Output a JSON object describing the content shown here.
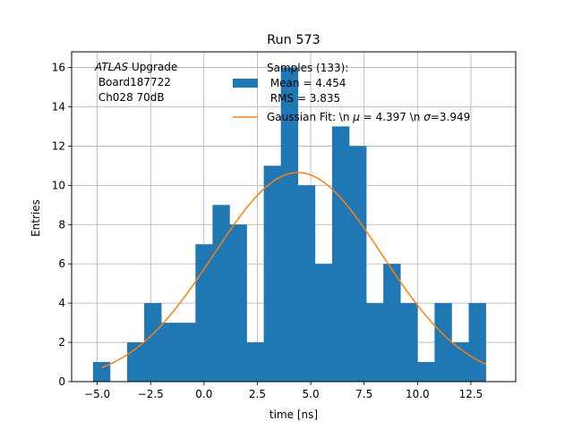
{
  "chart_data": {
    "type": "bar",
    "title": "Run 573",
    "xlabel": "time [ns]",
    "ylabel": "Entries",
    "xlim": [
      -6.2,
      14.6
    ],
    "ylim": [
      0,
      16.8
    ],
    "grid": true,
    "xticks": [
      -5.0,
      -2.5,
      0.0,
      2.5,
      5.0,
      7.5,
      10.0,
      12.5
    ],
    "xtick_labels": [
      "−5.0",
      "−2.5",
      "0.0",
      "2.5",
      "5.0",
      "7.5",
      "10.0",
      "12.5"
    ],
    "yticks": [
      0,
      2,
      4,
      6,
      8,
      10,
      12,
      14,
      16
    ],
    "ytick_labels": [
      "0",
      "2",
      "4",
      "6",
      "8",
      "10",
      "12",
      "14",
      "16"
    ],
    "annotation": {
      "line1_italic": "ATLAS",
      "line1_rest": " Upgrade",
      "line2": " Board187722",
      "line3": " Ch028 70dB"
    },
    "legend": {
      "placement": "top-right",
      "histogram_lines": [
        "Samples (133):",
        " Mean = 4.454",
        " RMS = 3.835"
      ],
      "fit_prefix": "Gaussian Fit: \\n ",
      "fit_mu_symbol": "μ",
      "fit_mu_text": " = 4.397 \\n ",
      "fit_sigma_symbol": "σ",
      "fit_sigma_text": "=3.949"
    },
    "series": [
      {
        "name": "Samples (133): Mean = 4.454 RMS = 3.835",
        "type": "histogram",
        "color": "#1f77b4",
        "bin_edges": [
          -5.2,
          -4.4,
          -3.6,
          -2.8,
          -2.0,
          -1.2,
          -0.4,
          0.4,
          1.2,
          2.0,
          2.8,
          3.6,
          4.4,
          5.2,
          6.0,
          6.8,
          7.6,
          8.4,
          9.2,
          10.0,
          10.8,
          11.6,
          12.4,
          13.2
        ],
        "counts": [
          1,
          0,
          2,
          4,
          3,
          3,
          7,
          9,
          8,
          2,
          11,
          16,
          10,
          6,
          13,
          12,
          4,
          6,
          4,
          1,
          4,
          2,
          4
        ]
      },
      {
        "name": "Gaussian Fit: \\n μ = 4.397 \\n σ=3.949",
        "type": "line",
        "color": "#ff7f0e",
        "function": "gaussian",
        "amplitude": 10.65,
        "mu": 4.397,
        "sigma": 3.949,
        "x_range": [
          -4.8,
          13.2
        ]
      }
    ]
  }
}
